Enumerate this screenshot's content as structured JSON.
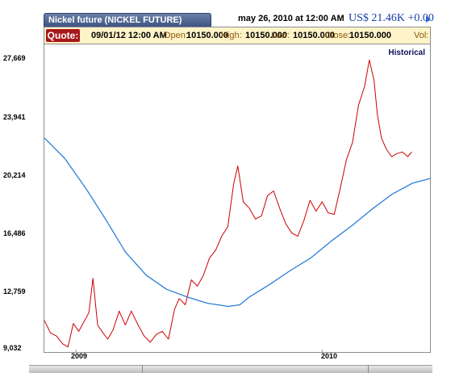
{
  "header": {
    "title": "Nickel future (NICKEL FUTURE)",
    "date": "may 26, 2010 at 12:00 AM",
    "price": "US$ 21.46K +0.00"
  },
  "quote": {
    "label": "Quote:",
    "datetime": "09/01/12 12:00 AM",
    "open_label": "Open:",
    "open": "10150.000",
    "high_label": "High:",
    "high": "10150.000",
    "low_label": "Low:",
    "low": "10150.000",
    "close_label": "Close:",
    "close": "10150.000",
    "vol_label": "Vol:"
  },
  "chart_label": "Historical",
  "colors": {
    "price_line": "#cc0000",
    "average_line": "#2a7fd6",
    "title_tab": "#4a5f8c",
    "quote_bar": "#fff4c9"
  },
  "chart_data": {
    "type": "line",
    "title": "",
    "xlabel": "",
    "ylabel": "",
    "x_ticks": [
      "2009",
      "2010"
    ],
    "y_ticks": [
      9032,
      12759,
      16486,
      20214,
      23941,
      27669
    ],
    "ylim": [
      9032,
      27669
    ],
    "xlim": [
      "2008-11-15",
      "2010-06-10"
    ],
    "grid": false,
    "series": [
      {
        "values": [
          [
            "2008-11-15",
            10800
          ],
          [
            "2008-11-24",
            10000
          ],
          [
            "2008-12-03",
            9800
          ],
          [
            "2008-12-12",
            9300
          ],
          [
            "2008-12-20",
            9100
          ],
          [
            "2008-12-28",
            10600
          ],
          [
            "2009-01-05",
            10100
          ],
          [
            "2009-01-14",
            10800
          ],
          [
            "2009-01-20",
            11300
          ],
          [
            "2009-01-26",
            13500
          ],
          [
            "2009-02-02",
            10500
          ],
          [
            "2009-02-10",
            10000
          ],
          [
            "2009-02-17",
            9600
          ],
          [
            "2009-02-25",
            10200
          ],
          [
            "2009-03-06",
            11400
          ],
          [
            "2009-03-15",
            10500
          ],
          [
            "2009-03-24",
            11400
          ],
          [
            "2009-04-03",
            10500
          ],
          [
            "2009-04-12",
            9800
          ],
          [
            "2009-04-21",
            9400
          ],
          [
            "2009-04-30",
            9900
          ],
          [
            "2009-05-09",
            10100
          ],
          [
            "2009-05-18",
            9600
          ],
          [
            "2009-05-27",
            11500
          ],
          [
            "2009-06-03",
            12200
          ],
          [
            "2009-06-12",
            11800
          ],
          [
            "2009-06-21",
            13400
          ],
          [
            "2009-06-30",
            13000
          ],
          [
            "2009-07-09",
            13700
          ],
          [
            "2009-07-18",
            14800
          ],
          [
            "2009-07-27",
            15300
          ],
          [
            "2009-08-05",
            16200
          ],
          [
            "2009-08-14",
            16800
          ],
          [
            "2009-08-23",
            19600
          ],
          [
            "2009-08-29",
            20700
          ],
          [
            "2009-09-06",
            18400
          ],
          [
            "2009-09-15",
            18000
          ],
          [
            "2009-09-24",
            17300
          ],
          [
            "2009-10-03",
            17500
          ],
          [
            "2009-10-12",
            18800
          ],
          [
            "2009-10-21",
            19100
          ],
          [
            "2009-10-30",
            18000
          ],
          [
            "2009-11-08",
            17000
          ],
          [
            "2009-11-17",
            16400
          ],
          [
            "2009-11-26",
            16200
          ],
          [
            "2009-12-05",
            17200
          ],
          [
            "2009-12-14",
            18500
          ],
          [
            "2009-12-23",
            17800
          ],
          [
            "2010-01-01",
            18400
          ],
          [
            "2010-01-10",
            17700
          ],
          [
            "2010-01-19",
            17600
          ],
          [
            "2010-01-28",
            19300
          ],
          [
            "2010-02-06",
            21100
          ],
          [
            "2010-02-15",
            22200
          ],
          [
            "2010-02-24",
            24600
          ],
          [
            "2010-03-05",
            25800
          ],
          [
            "2010-03-12",
            27500
          ],
          [
            "2010-03-19",
            26200
          ],
          [
            "2010-03-24",
            24000
          ],
          [
            "2010-03-30",
            22500
          ],
          [
            "2010-04-06",
            21800
          ],
          [
            "2010-04-14",
            21300
          ],
          [
            "2010-04-22",
            21500
          ],
          [
            "2010-04-30",
            21600
          ],
          [
            "2010-05-08",
            21300
          ],
          [
            "2010-05-14",
            21600
          ]
        ]
      },
      {
        "values": [
          [
            "2008-11-15",
            22500
          ],
          [
            "2008-12-15",
            21200
          ],
          [
            "2009-01-15",
            19300
          ],
          [
            "2009-02-15",
            17200
          ],
          [
            "2009-03-15",
            15200
          ],
          [
            "2009-04-15",
            13700
          ],
          [
            "2009-05-15",
            12800
          ],
          [
            "2009-06-15",
            12300
          ],
          [
            "2009-07-15",
            11900
          ],
          [
            "2009-08-15",
            11700
          ],
          [
            "2009-09-01",
            11800
          ],
          [
            "2009-09-15",
            12300
          ],
          [
            "2009-10-15",
            13100
          ],
          [
            "2009-11-15",
            14000
          ],
          [
            "2009-12-15",
            14800
          ],
          [
            "2010-01-15",
            15900
          ],
          [
            "2010-02-15",
            16900
          ],
          [
            "2010-03-15",
            17900
          ],
          [
            "2010-04-15",
            18900
          ],
          [
            "2010-05-15",
            19600
          ],
          [
            "2010-06-10",
            19900
          ]
        ]
      }
    ]
  }
}
